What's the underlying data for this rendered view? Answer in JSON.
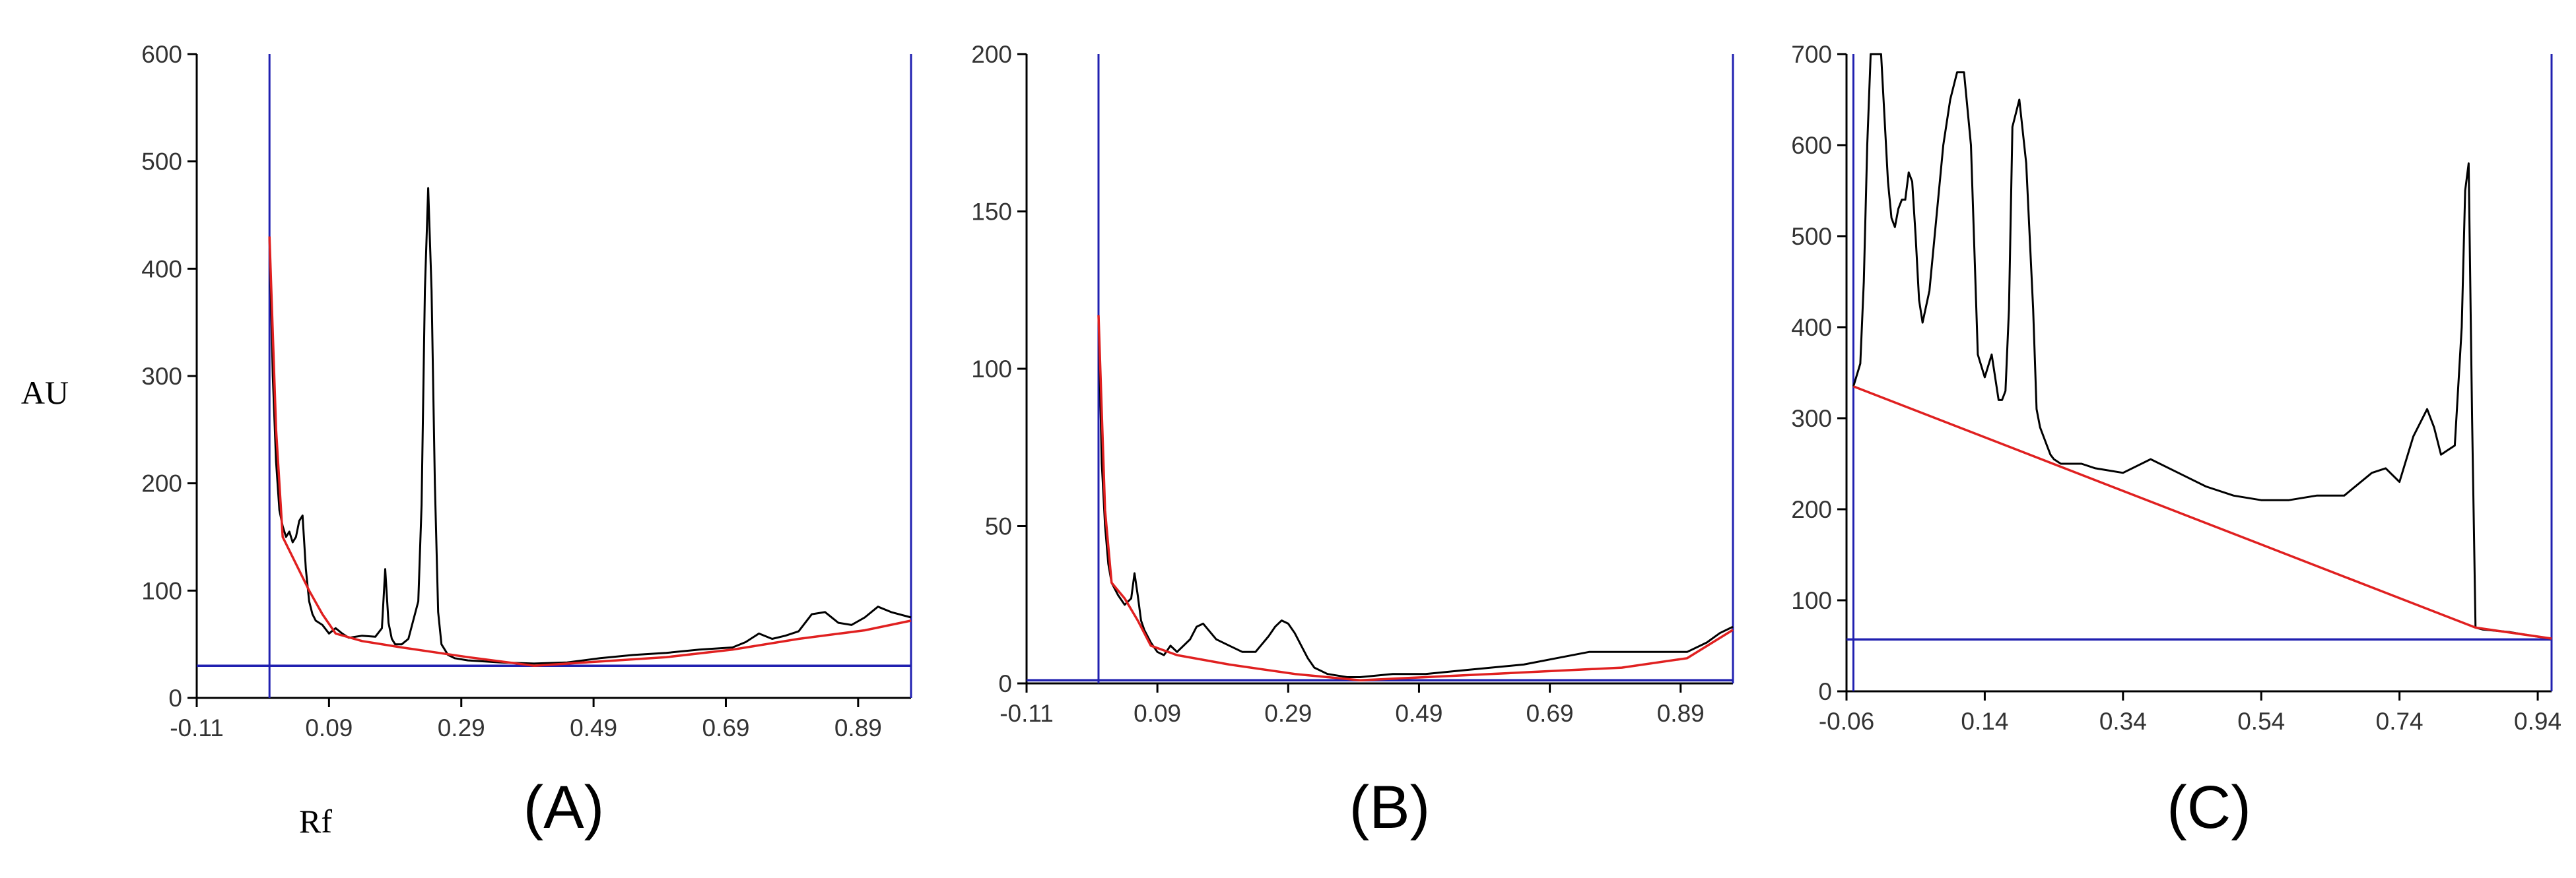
{
  "figure": {
    "y_axis_label": "AU",
    "x_axis_label": "Rf",
    "colors": {
      "trace": "#000000",
      "baseline": "#e02020",
      "markers": "#2020b0",
      "axis": "#000000"
    }
  },
  "chart_data": [
    {
      "type": "line",
      "panel_label": "(A)",
      "x_ticks": [
        "-0.11",
        "0.09",
        "0.29",
        "0.49",
        "0.69",
        "0.89"
      ],
      "y_ticks": [
        "0",
        "100",
        "200",
        "300",
        "400",
        "500",
        "600"
      ],
      "xlim": [
        -0.11,
        0.97
      ],
      "ylim": [
        0,
        600
      ],
      "vertical_markers": [
        0.0,
        0.97
      ],
      "horizontal_marker": 30,
      "series": [
        {
          "role": "chromatogram",
          "x": [
            0.0,
            0.005,
            0.01,
            0.015,
            0.02,
            0.025,
            0.03,
            0.035,
            0.04,
            0.045,
            0.05,
            0.055,
            0.06,
            0.065,
            0.07,
            0.08,
            0.09,
            0.1,
            0.11,
            0.12,
            0.14,
            0.16,
            0.17,
            0.175,
            0.18,
            0.185,
            0.19,
            0.2,
            0.21,
            0.225,
            0.23,
            0.235,
            0.24,
            0.245,
            0.25,
            0.255,
            0.26,
            0.27,
            0.28,
            0.3,
            0.35,
            0.4,
            0.45,
            0.5,
            0.55,
            0.6,
            0.65,
            0.7,
            0.72,
            0.74,
            0.76,
            0.78,
            0.8,
            0.82,
            0.84,
            0.86,
            0.88,
            0.9,
            0.92,
            0.94,
            0.97
          ],
          "y": [
            430,
            300,
            220,
            175,
            160,
            150,
            155,
            145,
            150,
            165,
            170,
            120,
            90,
            78,
            72,
            68,
            60,
            65,
            60,
            56,
            58,
            57,
            65,
            120,
            70,
            55,
            50,
            50,
            55,
            90,
            180,
            380,
            475,
            380,
            200,
            80,
            50,
            40,
            37,
            35,
            33,
            32,
            33,
            37,
            40,
            42,
            45,
            47,
            52,
            60,
            55,
            58,
            62,
            78,
            80,
            70,
            68,
            75,
            85,
            80,
            75
          ]
        },
        {
          "role": "baseline",
          "x": [
            0.0,
            0.01,
            0.02,
            0.04,
            0.06,
            0.08,
            0.1,
            0.14,
            0.2,
            0.3,
            0.4,
            0.5,
            0.6,
            0.7,
            0.8,
            0.9,
            0.97
          ],
          "y": [
            430,
            250,
            150,
            125,
            100,
            78,
            60,
            53,
            47,
            38,
            30,
            34,
            38,
            45,
            55,
            63,
            72
          ]
        }
      ]
    },
    {
      "type": "line",
      "panel_label": "(B)",
      "x_ticks": [
        "-0.11",
        "0.09",
        "0.29",
        "0.49",
        "0.69",
        "0.89"
      ],
      "y_ticks": [
        "0",
        "50",
        "100",
        "150",
        "200"
      ],
      "xlim": [
        -0.11,
        0.97
      ],
      "ylim": [
        0,
        200
      ],
      "vertical_markers": [
        0.0,
        0.97
      ],
      "horizontal_marker": 1,
      "series": [
        {
          "role": "chromatogram",
          "x": [
            0.0,
            0.005,
            0.01,
            0.015,
            0.02,
            0.03,
            0.04,
            0.05,
            0.055,
            0.06,
            0.065,
            0.07,
            0.08,
            0.09,
            0.1,
            0.11,
            0.12,
            0.13,
            0.14,
            0.15,
            0.16,
            0.18,
            0.2,
            0.22,
            0.24,
            0.26,
            0.27,
            0.28,
            0.29,
            0.3,
            0.31,
            0.32,
            0.33,
            0.35,
            0.38,
            0.4,
            0.45,
            0.5,
            0.55,
            0.6,
            0.65,
            0.7,
            0.75,
            0.8,
            0.85,
            0.9,
            0.93,
            0.95,
            0.97
          ],
          "y": [
            117,
            70,
            50,
            38,
            32,
            28,
            25,
            27,
            35,
            28,
            20,
            17,
            13,
            10,
            9,
            12,
            10,
            12,
            14,
            18,
            19,
            14,
            12,
            10,
            10,
            15,
            18,
            20,
            19,
            16,
            12,
            8,
            5,
            3,
            2,
            2,
            3,
            3,
            4,
            5,
            6,
            8,
            10,
            10,
            10,
            10,
            13,
            16,
            18
          ]
        },
        {
          "role": "baseline",
          "x": [
            0.0,
            0.01,
            0.02,
            0.04,
            0.06,
            0.08,
            0.12,
            0.2,
            0.3,
            0.4,
            0.5,
            0.6,
            0.7,
            0.8,
            0.9,
            0.97
          ],
          "y": [
            117,
            55,
            32,
            27,
            20,
            12,
            9,
            6,
            3,
            1,
            2,
            3,
            4,
            5,
            8,
            17
          ]
        }
      ]
    },
    {
      "type": "line",
      "panel_label": "(C)",
      "x_ticks": [
        "-0.06",
        "0.14",
        "0.34",
        "0.54",
        "0.74",
        "0.94"
      ],
      "y_ticks": [
        "0",
        "100",
        "200",
        "300",
        "400",
        "500",
        "600",
        "700"
      ],
      "xlim": [
        -0.06,
        0.96
      ],
      "ylim": [
        0,
        700
      ],
      "vertical_markers": [
        -0.05,
        0.96
      ],
      "horizontal_marker": 57,
      "series": [
        {
          "role": "chromatogram",
          "x": [
            -0.05,
            -0.04,
            -0.035,
            -0.03,
            -0.025,
            -0.02,
            -0.01,
            0.0,
            0.005,
            0.01,
            0.015,
            0.02,
            0.025,
            0.03,
            0.035,
            0.04,
            0.045,
            0.05,
            0.06,
            0.07,
            0.08,
            0.09,
            0.1,
            0.11,
            0.12,
            0.13,
            0.14,
            0.15,
            0.16,
            0.165,
            0.17,
            0.175,
            0.18,
            0.19,
            0.2,
            0.21,
            0.215,
            0.22,
            0.225,
            0.23,
            0.235,
            0.24,
            0.25,
            0.26,
            0.28,
            0.3,
            0.34,
            0.38,
            0.42,
            0.46,
            0.5,
            0.54,
            0.58,
            0.62,
            0.66,
            0.7,
            0.72,
            0.74,
            0.76,
            0.78,
            0.79,
            0.8,
            0.81,
            0.82,
            0.83,
            0.835,
            0.84,
            0.845,
            0.85,
            0.86,
            0.9,
            0.94,
            0.96
          ],
          "y": [
            335,
            360,
            450,
            600,
            700,
            700,
            700,
            560,
            520,
            510,
            530,
            540,
            540,
            570,
            560,
            500,
            430,
            405,
            440,
            520,
            600,
            650,
            680,
            680,
            600,
            370,
            345,
            370,
            320,
            320,
            330,
            420,
            620,
            650,
            580,
            420,
            310,
            290,
            280,
            270,
            260,
            255,
            250,
            250,
            250,
            245,
            240,
            255,
            240,
            225,
            215,
            210,
            210,
            215,
            215,
            240,
            245,
            230,
            280,
            310,
            290,
            260,
            265,
            270,
            400,
            550,
            580,
            300,
            70,
            68,
            65,
            60,
            58
          ]
        },
        {
          "role": "baseline",
          "x": [
            -0.05,
            0.85,
            0.96
          ],
          "y": [
            335,
            70,
            58
          ]
        }
      ]
    }
  ]
}
